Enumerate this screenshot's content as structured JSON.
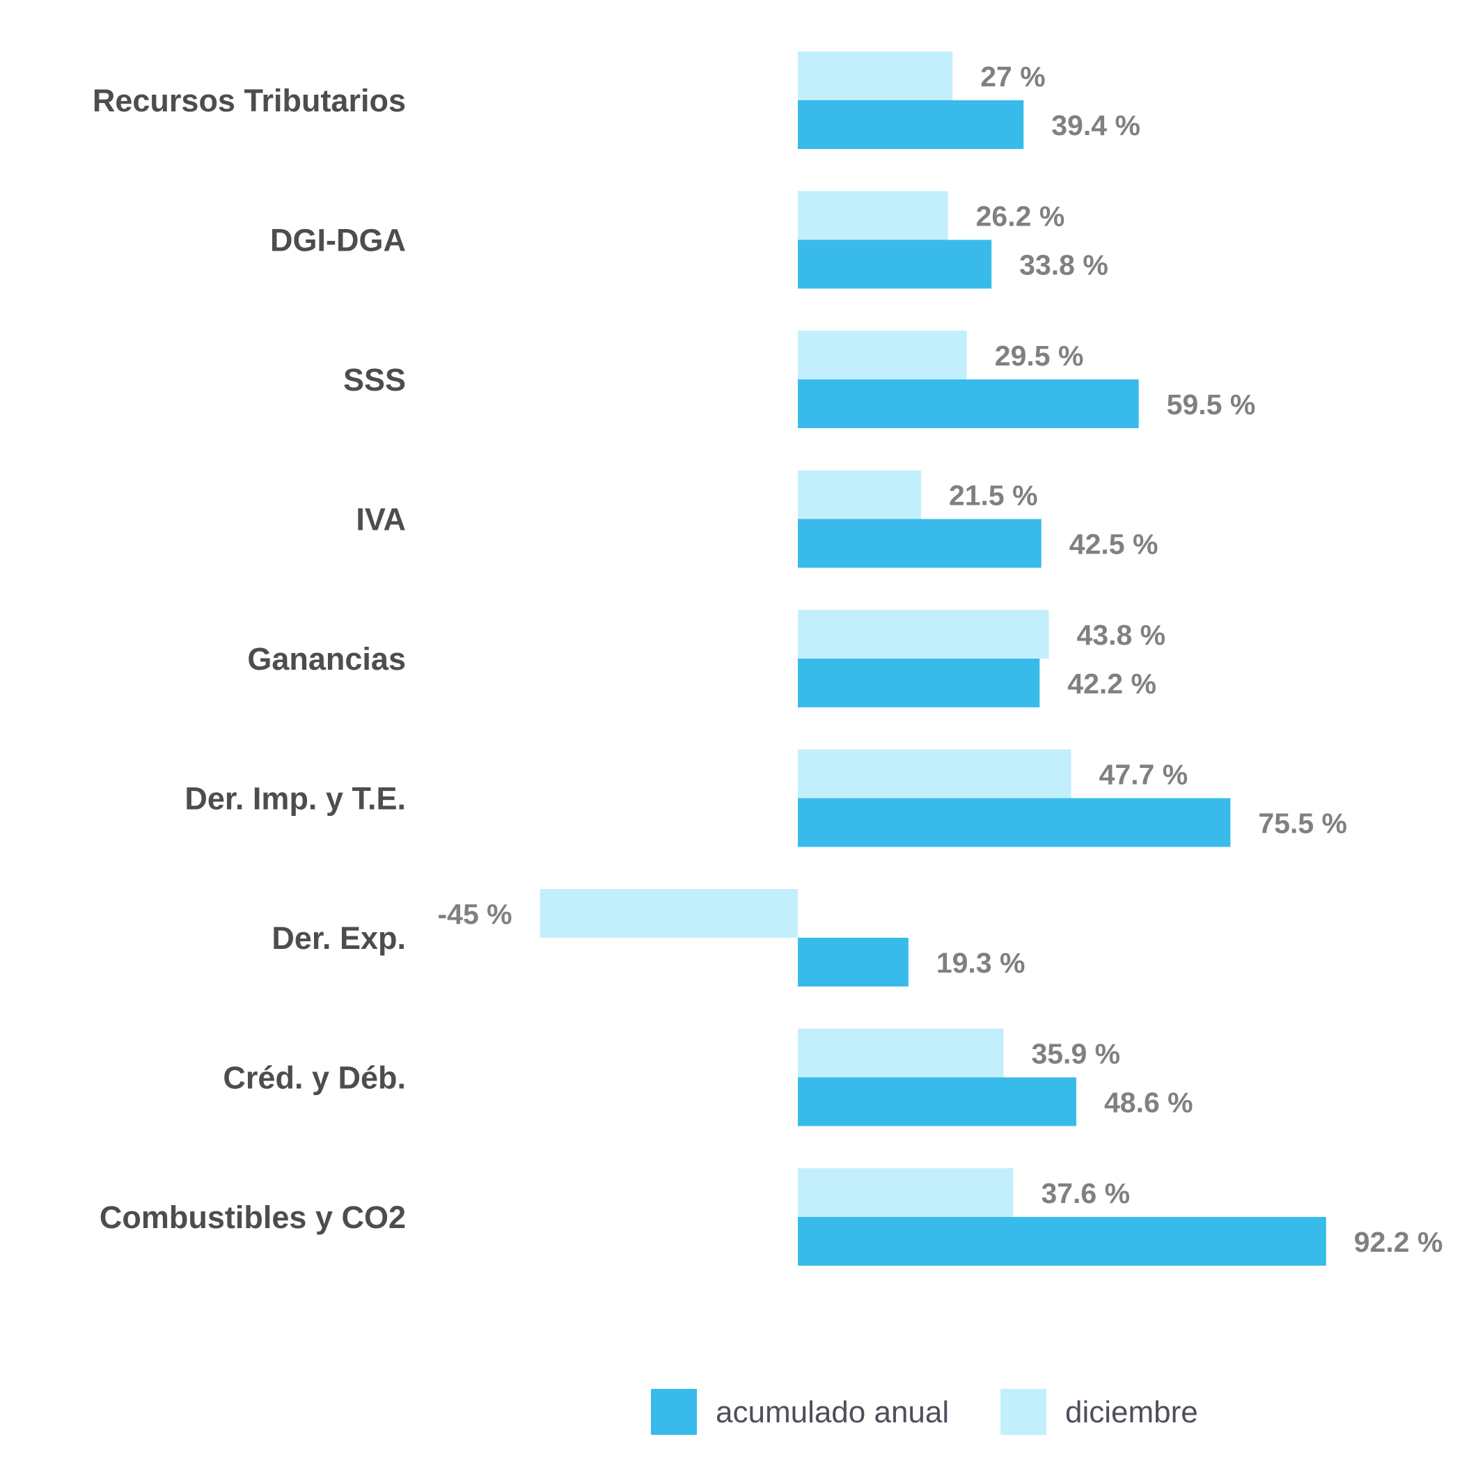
{
  "chart_data": {
    "type": "bar",
    "orientation": "horizontal",
    "categories": [
      "Recursos Tributarios",
      "DGI-DGA",
      "SSS",
      "IVA",
      "Ganancias",
      "Der. Imp. y T.E.",
      "Der. Exp.",
      "Créd. y Déb.",
      "Combustibles y CO2"
    ],
    "series": [
      {
        "name": "diciembre",
        "color": "#C3EFFD",
        "values": [
          27,
          26.2,
          29.5,
          21.5,
          43.8,
          47.7,
          -45,
          35.9,
          37.6
        ],
        "labels": [
          "27 %",
          "26.2 %",
          "29.5 %",
          "21.5 %",
          "43.8 %",
          "47.7 %",
          "-45 %",
          "35.9 %",
          "37.6 %"
        ]
      },
      {
        "name": "acumulado anual",
        "color": "#38BBEB",
        "values": [
          39.4,
          33.8,
          59.5,
          42.5,
          42.2,
          75.5,
          19.3,
          48.6,
          92.2
        ],
        "labels": [
          "39.4 %",
          "33.8 %",
          "59.5 %",
          "42.5 %",
          "42.2 %",
          "75.5 %",
          "19.3 %",
          "48.6 %",
          "92.2 %"
        ]
      }
    ],
    "legend": {
      "placement": "bottom",
      "items": [
        "acumulado anual",
        "diciembre"
      ]
    },
    "grid": false,
    "xaxis_visible": false,
    "value_unit": "%"
  }
}
